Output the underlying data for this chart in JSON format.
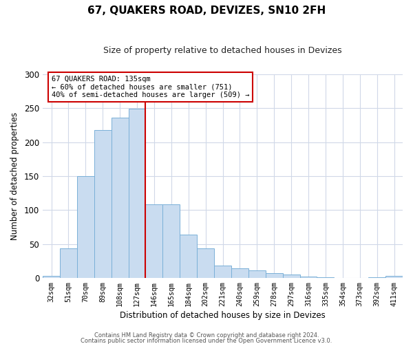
{
  "title": "67, QUAKERS ROAD, DEVIZES, SN10 2FH",
  "subtitle": "Size of property relative to detached houses in Devizes",
  "xlabel": "Distribution of detached houses by size in Devizes",
  "ylabel": "Number of detached properties",
  "bar_labels": [
    "32sqm",
    "51sqm",
    "70sqm",
    "89sqm",
    "108sqm",
    "127sqm",
    "146sqm",
    "165sqm",
    "184sqm",
    "202sqm",
    "221sqm",
    "240sqm",
    "259sqm",
    "278sqm",
    "297sqm",
    "316sqm",
    "335sqm",
    "354sqm",
    "373sqm",
    "392sqm",
    "411sqm"
  ],
  "bar_heights": [
    3,
    44,
    150,
    218,
    236,
    249,
    109,
    109,
    64,
    44,
    18,
    14,
    11,
    7,
    5,
    2,
    1,
    0,
    0,
    1,
    3
  ],
  "bar_color": "#c9dcf0",
  "bar_edge_color": "#7ab0d8",
  "vline_x_index": 5.5,
  "vline_color": "#cc0000",
  "annotation_text": "67 QUAKERS ROAD: 135sqm\n← 60% of detached houses are smaller (751)\n40% of semi-detached houses are larger (509) →",
  "annotation_box_color": "#ffffff",
  "annotation_box_edge_color": "#cc0000",
  "ylim": [
    0,
    300
  ],
  "yticks": [
    0,
    50,
    100,
    150,
    200,
    250,
    300
  ],
  "footer1": "Contains HM Land Registry data © Crown copyright and database right 2024.",
  "footer2": "Contains public sector information licensed under the Open Government Licence v3.0.",
  "bg_color": "#ffffff",
  "grid_color": "#d0d8e8"
}
